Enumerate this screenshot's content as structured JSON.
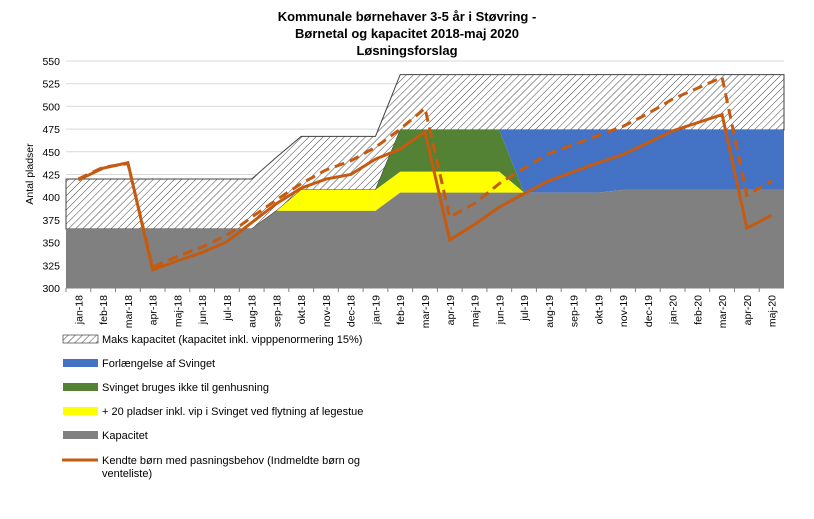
{
  "chart_data": {
    "type": "area",
    "title_lines": [
      "Kommunale  børnehaver 3-5 år i Støvring -",
      "Børnetal og kapacitet 2018-maj 2020",
      "Løsningsforslag"
    ],
    "ylabel": "Antal pladser",
    "ylim": [
      300,
      550
    ],
    "yticks": [
      300,
      325,
      350,
      375,
      400,
      425,
      450,
      475,
      500,
      525,
      550
    ],
    "grid": true,
    "categories": [
      "jan-18",
      "feb-18",
      "mar-18",
      "apr-18",
      "maj-18",
      "jun-18",
      "jul-18",
      "aug-18",
      "sep-18",
      "okt-18",
      "nov-18",
      "dec-18",
      "jan-19",
      "feb-19",
      "mar-19",
      "apr-19",
      "maj-19",
      "jun-19",
      "jul-19",
      "aug-19",
      "sep-19",
      "okt-19",
      "nov-19",
      "dec-19",
      "jan-20",
      "feb-20",
      "mar-20",
      "apr-20",
      "maj-20"
    ],
    "series": [
      {
        "name": "Kapacitet",
        "kind": "area",
        "color": "#808080",
        "values": [
          365,
          365,
          365,
          365,
          365,
          365,
          365,
          365,
          385,
          385,
          385,
          385,
          385,
          405,
          405,
          405,
          405,
          405,
          405,
          405,
          405,
          405,
          408,
          408,
          408,
          408,
          408,
          408,
          408
        ]
      },
      {
        "name": "+ 20 pladser inkl. vip i Svinget ved flytning af legestue",
        "kind": "area",
        "color": "#FFFF00",
        "values": [
          0,
          0,
          0,
          0,
          0,
          0,
          0,
          0,
          0,
          23,
          23,
          23,
          23,
          23,
          23,
          23,
          23,
          23,
          0,
          0,
          0,
          0,
          0,
          0,
          0,
          0,
          0,
          0,
          0
        ]
      },
      {
        "name": "Svinget bruges ikke til genhusning",
        "kind": "area",
        "color": "#548235",
        "values": [
          0,
          0,
          0,
          0,
          0,
          0,
          0,
          0,
          0,
          0,
          0,
          0,
          0,
          46,
          46,
          46,
          46,
          46,
          0,
          0,
          0,
          0,
          0,
          0,
          0,
          0,
          0,
          0,
          0
        ]
      },
      {
        "name": "Forlængelse af Svinget",
        "kind": "area",
        "color": "#4472C4",
        "values": [
          0,
          0,
          0,
          0,
          0,
          0,
          0,
          0,
          0,
          0,
          0,
          0,
          0,
          0,
          0,
          0,
          0,
          0,
          69,
          69,
          69,
          69,
          66,
          66,
          66,
          66,
          66,
          66,
          66
        ]
      },
      {
        "name": "Maks kapacitet (kapacitet inkl. vipppenormering 15%)",
        "kind": "hatched-area",
        "color": "#404040",
        "values": [
          420,
          420,
          420,
          420,
          420,
          420,
          420,
          420,
          444,
          467,
          467,
          467,
          467,
          535,
          535,
          535,
          535,
          535,
          535,
          535,
          535,
          535,
          535,
          535,
          535,
          535,
          535,
          535,
          535
        ]
      },
      {
        "name": "Kendte børn med pasningsbehov (Indmeldte børn og venteliste)",
        "kind": "line",
        "color": "#C55A11",
        "values": [
          419,
          432,
          438,
          320,
          330,
          339,
          351,
          372,
          393,
          410,
          420,
          425,
          442,
          453,
          472,
          353,
          370,
          389,
          404,
          418,
          428,
          438,
          447,
          460,
          473,
          482,
          491,
          366,
          380
        ]
      },
      {
        "name": "",
        "kind": "dashed-line",
        "color": "#C55A11",
        "values": [
          420,
          433,
          437,
          323,
          335,
          345,
          358,
          378,
          397,
          415,
          430,
          440,
          455,
          475,
          498,
          378,
          393,
          415,
          432,
          448,
          458,
          468,
          478,
          492,
          508,
          520,
          532,
          402,
          418
        ]
      }
    ],
    "legend_placement": "bottom"
  }
}
